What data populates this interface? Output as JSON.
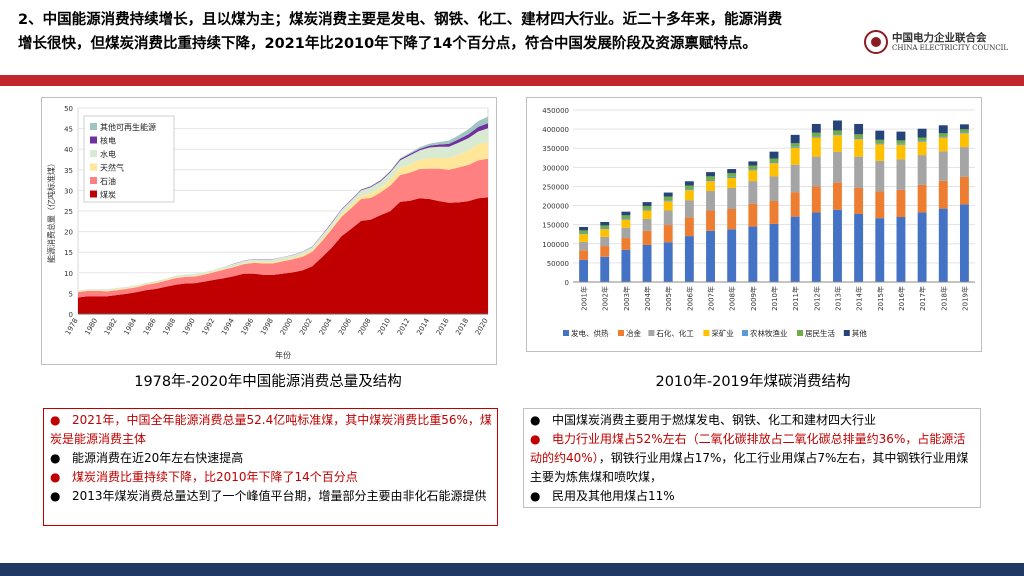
{
  "header": {
    "headline_line1": "2、中国能源消费持续增长，且以煤为主；煤炭消费主要是发电、钢铁、化工、建材四大行业。近二十多年来，能源消费",
    "headline_line2": "增长很快，但煤炭消费比重持续下降，2021年比2010年下降了14个百分点，符合中国发展阶段及资源禀赋特点。",
    "logo_cn": "中国电力企业联合会",
    "logo_en": "CHINA ELECTRICITY COUNCIL"
  },
  "colors": {
    "accent_red": "#c1272d",
    "footer_blue": "#1f3864",
    "text_red": "#c00000"
  },
  "left_caption": "1978年-2020年中国能源消费总量及结构",
  "right_caption": "2010年-2019年煤碳消费结构",
  "left_notes": [
    {
      "bullet": "●",
      "text": "2021年，中国全年能源消费总量52.4亿吨标准煤，其中煤炭消费比重56%，煤炭是能源消费主体",
      "red": true
    },
    {
      "bullet": "●",
      "text": "能源消费在近20年左右快速提高",
      "red": false
    },
    {
      "bullet": "●",
      "text": "煤炭消费比重持续下降，比2010年下降了14个百分点",
      "red": true
    },
    {
      "bullet": "●",
      "text": "2013年煤炭消费总量达到了一个峰值平台期，增量部分主要由非化石能源提供",
      "red": false
    }
  ],
  "right_notes": [
    {
      "bullet": "●",
      "text": "中国煤炭消费主要用于燃煤发电、钢铁、化工和建材四大行业",
      "red": false
    },
    {
      "bullet": "●",
      "text": "电力行业用煤占52%左右（二氧化碳排放占二氧化碳总排量约36%，占能源活动的约40%）",
      "red": true,
      "tail": "，钢铁行业用煤占17%，化工行业用煤占7%左右，其中钢铁行业用煤主要为炼焦煤和喷吹煤，"
    },
    {
      "bullet": "●",
      "text": "民用及其他用煤占11%",
      "red": false
    }
  ],
  "chart_data": [
    {
      "type": "area",
      "title": "",
      "xlabel": "年份",
      "ylabel": "能源消费总量（亿吨标准煤）",
      "ylim": [
        0,
        50
      ],
      "yticks": [
        0,
        5,
        10,
        15,
        20,
        25,
        30,
        35,
        40,
        45,
        50
      ],
      "x": [
        1978,
        1979,
        1980,
        1981,
        1982,
        1983,
        1984,
        1985,
        1986,
        1987,
        1988,
        1989,
        1990,
        1991,
        1992,
        1993,
        1994,
        1995,
        1996,
        1997,
        1998,
        1999,
        2000,
        2001,
        2002,
        2003,
        2004,
        2005,
        2006,
        2007,
        2008,
        2009,
        2010,
        2011,
        2012,
        2013,
        2014,
        2015,
        2016,
        2017,
        2018,
        2019,
        2020
      ],
      "xtick_labels": [
        "1978",
        "1980",
        "1982",
        "1984",
        "1986",
        "1988",
        "1990",
        "1992",
        "1994",
        "1996",
        "1998",
        "2000",
        "2002",
        "2004",
        "2006",
        "2008",
        "2010",
        "2012",
        "2014",
        "2016",
        "2018",
        "2020"
      ],
      "legend_position": "top-left",
      "series": [
        {
          "name": "煤炭",
          "color": "#c00000",
          "values": [
            4.0,
            4.3,
            4.3,
            4.3,
            4.6,
            4.9,
            5.3,
            5.8,
            6.1,
            6.6,
            7.1,
            7.4,
            7.5,
            7.9,
            8.3,
            8.7,
            9.2,
            9.8,
            9.8,
            9.5,
            9.5,
            9.8,
            10.1,
            10.6,
            11.6,
            13.8,
            16.1,
            18.9,
            20.7,
            22.6,
            22.9,
            24.0,
            25.0,
            27.2,
            27.5,
            28.1,
            27.9,
            27.4,
            27.0,
            27.1,
            27.4,
            28.1,
            28.3
          ]
        },
        {
          "name": "石油",
          "color": "#ff8080",
          "values": [
            1.3,
            1.3,
            1.3,
            1.2,
            1.2,
            1.2,
            1.2,
            1.3,
            1.4,
            1.5,
            1.6,
            1.6,
            1.6,
            1.7,
            1.9,
            2.1,
            2.2,
            2.3,
            2.6,
            2.8,
            2.8,
            3.0,
            3.2,
            3.3,
            3.5,
            3.9,
            4.5,
            4.7,
            5.0,
            5.3,
            5.3,
            5.5,
            6.2,
            6.5,
            6.8,
            7.1,
            7.4,
            7.9,
            8.0,
            8.5,
            8.8,
            9.2,
            9.4
          ]
        },
        {
          "name": "天然气",
          "color": "#ffe699",
          "values": [
            0.2,
            0.2,
            0.2,
            0.2,
            0.2,
            0.2,
            0.2,
            0.2,
            0.2,
            0.2,
            0.2,
            0.2,
            0.2,
            0.2,
            0.2,
            0.2,
            0.2,
            0.2,
            0.3,
            0.3,
            0.3,
            0.3,
            0.3,
            0.4,
            0.4,
            0.5,
            0.5,
            0.6,
            0.8,
            0.9,
            1.1,
            1.2,
            1.4,
            1.8,
            2.0,
            2.2,
            2.5,
            2.6,
            2.8,
            3.1,
            3.5,
            3.9,
            4.1
          ]
        },
        {
          "name": "水电",
          "color": "#d9ead3",
          "values": [
            0.2,
            0.2,
            0.2,
            0.3,
            0.3,
            0.3,
            0.3,
            0.3,
            0.3,
            0.3,
            0.4,
            0.4,
            0.4,
            0.4,
            0.4,
            0.5,
            0.6,
            0.6,
            0.6,
            0.7,
            0.7,
            0.7,
            0.7,
            0.8,
            0.8,
            0.9,
            1.0,
            1.1,
            1.1,
            1.2,
            1.5,
            1.5,
            1.8,
            1.8,
            2.2,
            2.3,
            2.6,
            2.7,
            2.8,
            2.9,
            3.0,
            3.1,
            3.3
          ]
        },
        {
          "name": "核电",
          "color": "#7030a0",
          "values": [
            0,
            0,
            0,
            0,
            0,
            0,
            0,
            0,
            0,
            0,
            0,
            0,
            0,
            0,
            0,
            0,
            0.05,
            0.05,
            0.05,
            0.05,
            0.05,
            0.05,
            0.06,
            0.07,
            0.08,
            0.14,
            0.16,
            0.17,
            0.18,
            0.2,
            0.22,
            0.23,
            0.24,
            0.28,
            0.32,
            0.36,
            0.43,
            0.55,
            0.68,
            0.8,
            0.94,
            1.11,
            1.2
          ]
        },
        {
          "name": "其他可再生能源",
          "color": "#9fc5c0",
          "values": [
            0,
            0,
            0,
            0,
            0,
            0,
            0,
            0,
            0,
            0,
            0,
            0,
            0,
            0,
            0,
            0,
            0,
            0,
            0,
            0,
            0,
            0,
            0,
            0,
            0,
            0,
            0,
            0,
            0.02,
            0.04,
            0.06,
            0.1,
            0.13,
            0.2,
            0.3,
            0.4,
            0.5,
            0.6,
            0.8,
            1.0,
            1.2,
            1.4,
            1.6
          ]
        }
      ]
    },
    {
      "type": "bar",
      "stacked": true,
      "title": "",
      "ylim": [
        0,
        450000
      ],
      "yticks": [
        0,
        50000,
        100000,
        150000,
        200000,
        250000,
        300000,
        350000,
        400000,
        450000
      ],
      "categories": [
        "2001年",
        "2002年",
        "2003年",
        "2004年",
        "2005年",
        "2006年",
        "2007年",
        "2008年",
        "2009年",
        "2010年",
        "2011年",
        "2012年",
        "2013年",
        "2014年",
        "2015年",
        "2016年",
        "2017年",
        "2018年",
        "2019年"
      ],
      "legend_position": "bottom",
      "series": [
        {
          "name": "发电、供热",
          "color": "#4472c4",
          "values": [
            58000,
            66000,
            84000,
            97000,
            104000,
            120000,
            134000,
            138000,
            145000,
            152000,
            171000,
            182000,
            189000,
            178000,
            167000,
            170000,
            182000,
            192000,
            203000
          ]
        },
        {
          "name": "冶金",
          "color": "#ed7d31",
          "values": [
            25000,
            28000,
            31000,
            37000,
            45000,
            49000,
            53000,
            53000,
            60000,
            60000,
            64000,
            68000,
            71000,
            68000,
            70000,
            71000,
            72000,
            73000,
            72000
          ]
        },
        {
          "name": "石化、化工",
          "color": "#a5a5a5",
          "values": [
            22000,
            24000,
            27000,
            31000,
            38000,
            45000,
            51000,
            55000,
            59000,
            64000,
            72000,
            78000,
            81000,
            82000,
            80000,
            80000,
            78000,
            77000,
            78000
          ]
        },
        {
          "name": "采矿业",
          "color": "#ffc000",
          "values": [
            20000,
            20000,
            21000,
            22000,
            24000,
            26000,
            26000,
            26000,
            28000,
            35000,
            44000,
            50000,
            43000,
            46000,
            43000,
            38000,
            35000,
            36000,
            36000
          ]
        },
        {
          "name": "农林牧渔业",
          "color": "#5b9bd5",
          "values": [
            2000,
            2000,
            3000,
            3000,
            3000,
            3000,
            3000,
            3000,
            3000,
            3000,
            3000,
            3000,
            3000,
            3000,
            3000,
            3000,
            3000,
            3000,
            3000
          ]
        },
        {
          "name": "居民生活",
          "color": "#70ad47",
          "values": [
            8000,
            8000,
            8500,
            9000,
            9500,
            9500,
            9500,
            9500,
            9500,
            9000,
            9000,
            9500,
            9500,
            9500,
            9000,
            8500,
            8000,
            8000,
            7500
          ]
        },
        {
          "name": "其他",
          "color": "#264478",
          "values": [
            9000,
            9000,
            9500,
            10000,
            10500,
            11000,
            11000,
            11000,
            11000,
            18000,
            22000,
            23000,
            26000,
            27000,
            24000,
            23000,
            23000,
            21000,
            13000
          ]
        }
      ]
    }
  ]
}
